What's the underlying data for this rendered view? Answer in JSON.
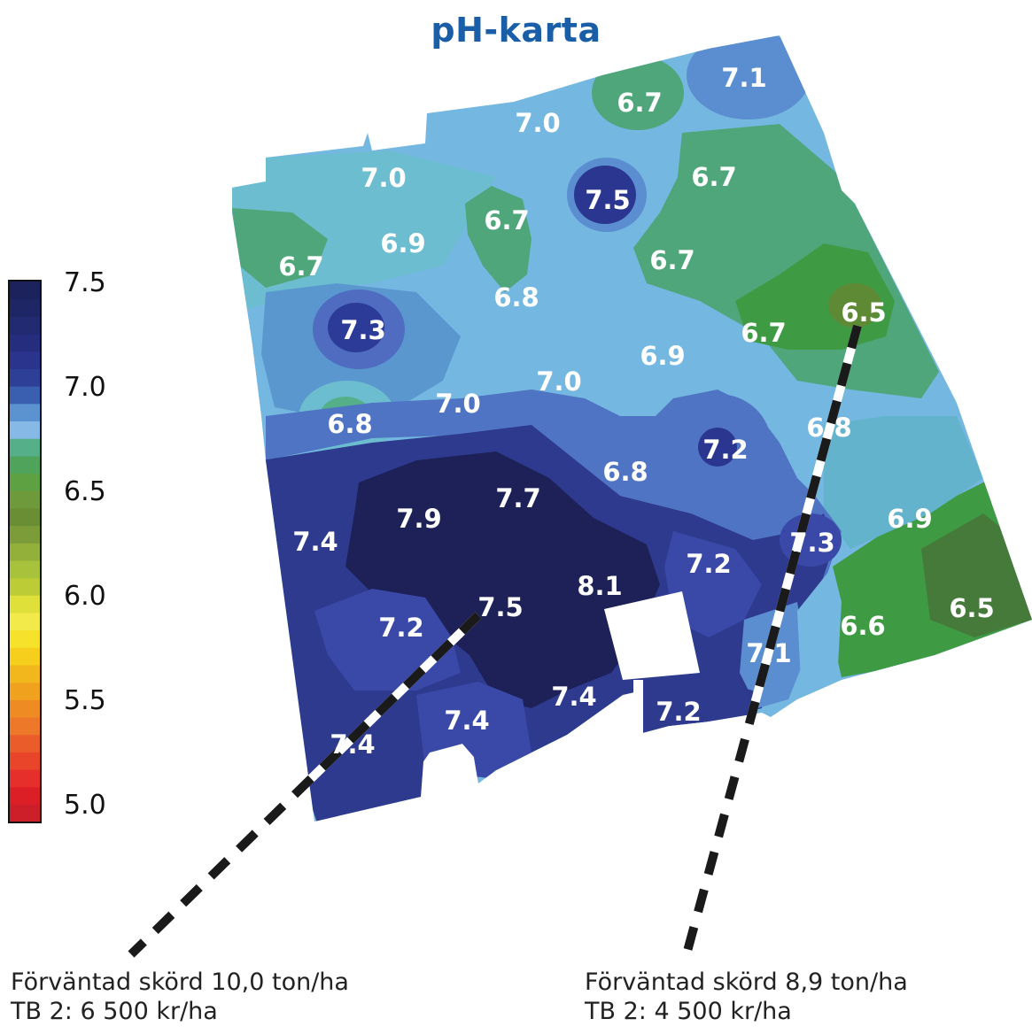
{
  "title": "pH-karta",
  "legend": {
    "ticks": [
      "7.5",
      "7.0",
      "6.5",
      "6.0",
      "5.5",
      "5.0"
    ],
    "colors": [
      "#cc1f2a",
      "#dc1e27",
      "#e62e2a",
      "#e9452a",
      "#ea5d2a",
      "#ed782a",
      "#ee8b22",
      "#f0a21e",
      "#f1b71c",
      "#f5cf1b",
      "#f6e22a",
      "#f2ea4a",
      "#e0e03a",
      "#bccc36",
      "#a8c23c",
      "#92b03a",
      "#7c9c3a",
      "#6a8e34",
      "#6f9a3c",
      "#5ea143",
      "#4fa35a",
      "#55b08a",
      "#86b9e6",
      "#5a93d0",
      "#3a5fb0",
      "#2e3f98",
      "#2a348c",
      "#252d7e",
      "#222a72",
      "#1f2666",
      "#1c235c"
    ]
  },
  "map_labels": [
    {
      "text": "7.1",
      "color": "light"
    },
    {
      "text": "6.7",
      "color": "light"
    },
    {
      "text": "7.0",
      "color": "light"
    },
    {
      "text": "7.0",
      "color": "light"
    },
    {
      "text": "6.7",
      "color": "light"
    },
    {
      "text": "7.5",
      "color": "light"
    },
    {
      "text": "6.7",
      "color": "light"
    },
    {
      "text": "6.9",
      "color": "light"
    },
    {
      "text": "6.7",
      "color": "light"
    },
    {
      "text": "6.7",
      "color": "light"
    },
    {
      "text": "6.8",
      "color": "light"
    },
    {
      "text": "6.5",
      "color": "light"
    },
    {
      "text": "7.3",
      "color": "light"
    },
    {
      "text": "6.7",
      "color": "light"
    },
    {
      "text": "6.9",
      "color": "light"
    },
    {
      "text": "7.0",
      "color": "light"
    },
    {
      "text": "7.0",
      "color": "light"
    },
    {
      "text": "6.8",
      "color": "light"
    },
    {
      "text": "6.8",
      "color": "light"
    },
    {
      "text": "7.2",
      "color": "light"
    },
    {
      "text": "6.8",
      "color": "light"
    },
    {
      "text": "7.7",
      "color": "light"
    },
    {
      "text": "7.9",
      "color": "light"
    },
    {
      "text": "7.4",
      "color": "light"
    },
    {
      "text": "7.3",
      "color": "light"
    },
    {
      "text": "6.9",
      "color": "light"
    },
    {
      "text": "7.2",
      "color": "light"
    },
    {
      "text": "8.1",
      "color": "light"
    },
    {
      "text": "7.5",
      "color": "light"
    },
    {
      "text": "7.2",
      "color": "light"
    },
    {
      "text": "6.6",
      "color": "light"
    },
    {
      "text": "6.5",
      "color": "light"
    },
    {
      "text": "7.1",
      "color": "light"
    },
    {
      "text": "7.4",
      "color": "light"
    },
    {
      "text": "7.4",
      "color": "light"
    },
    {
      "text": "7.2",
      "color": "light"
    },
    {
      "text": "7.4",
      "color": "light"
    }
  ],
  "left_caption": {
    "line1": "Förväntad skörd 10,0 ton/ha",
    "line2": "TB 2: 6 500 kr/ha"
  },
  "right_caption": {
    "line1": "Förväntad skörd 8,9 ton/ha",
    "line2": "TB 2: 4 500 kr/ha"
  }
}
